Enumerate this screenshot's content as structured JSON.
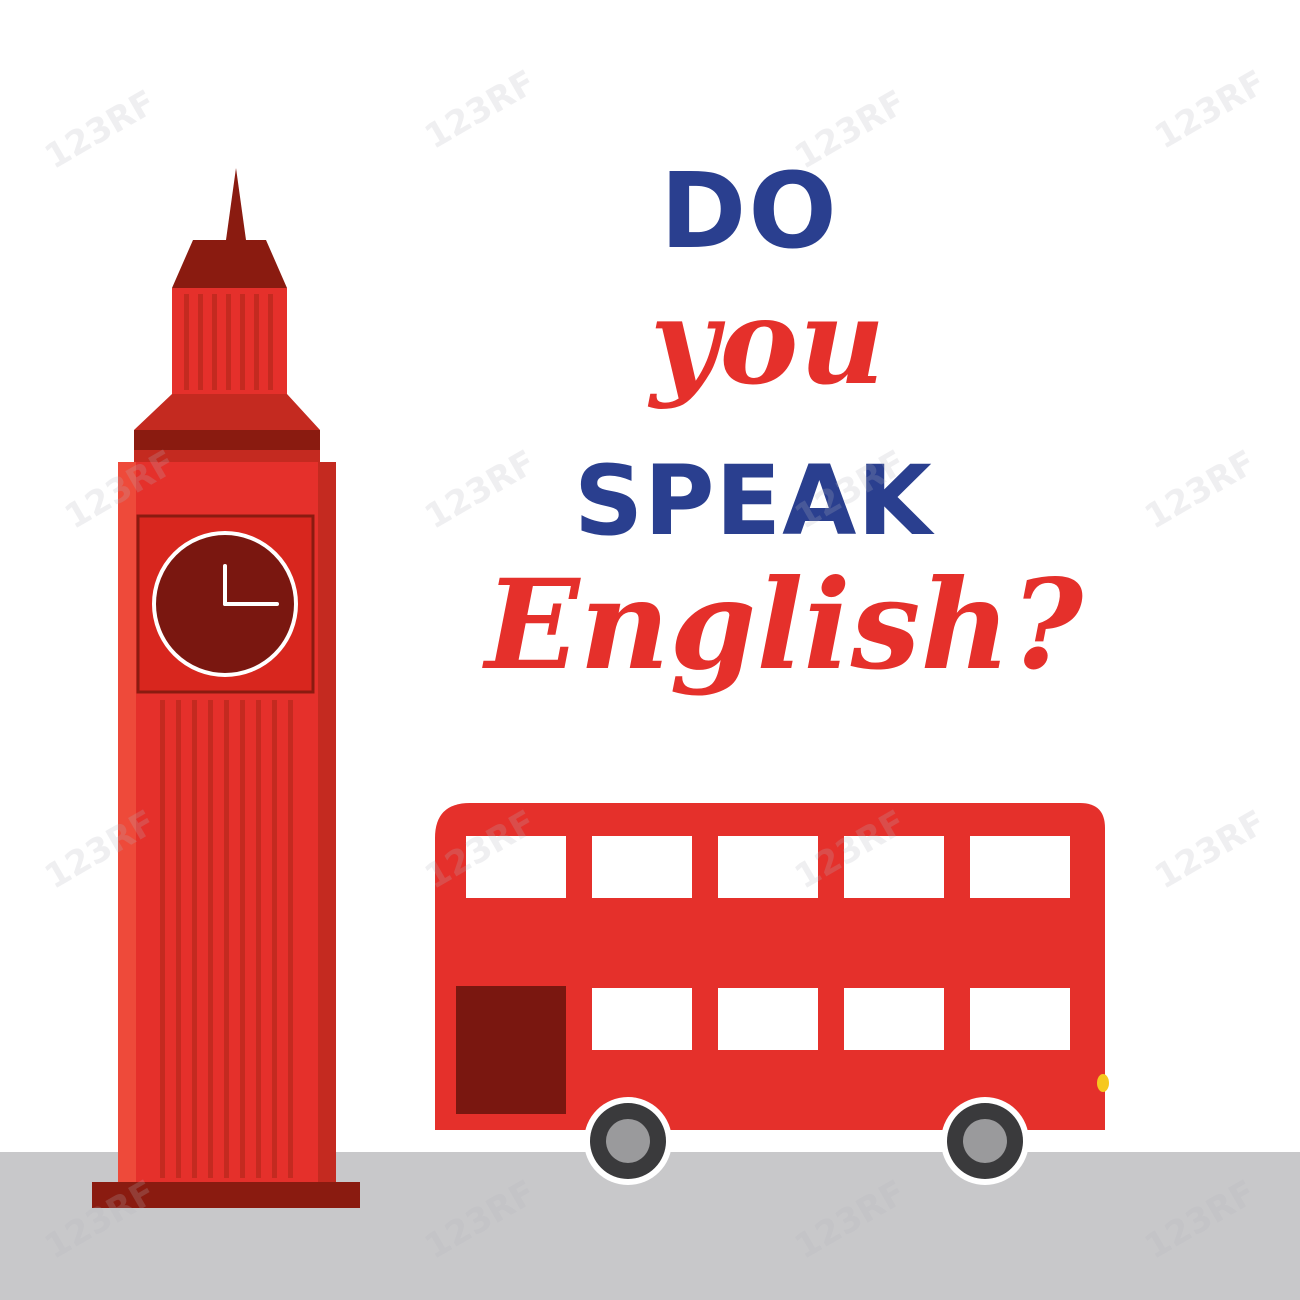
{
  "heading": {
    "line1": "DO",
    "line2": "you",
    "line3": "SPEAK",
    "line4": "English?"
  },
  "watermark": "123RF",
  "colors": {
    "red": "#e5302b",
    "dark_red": "#8a1b10",
    "navy": "#2a3f8f",
    "ground": "#c8c8ca"
  },
  "clock": {
    "hour": 3,
    "minute": 0
  }
}
